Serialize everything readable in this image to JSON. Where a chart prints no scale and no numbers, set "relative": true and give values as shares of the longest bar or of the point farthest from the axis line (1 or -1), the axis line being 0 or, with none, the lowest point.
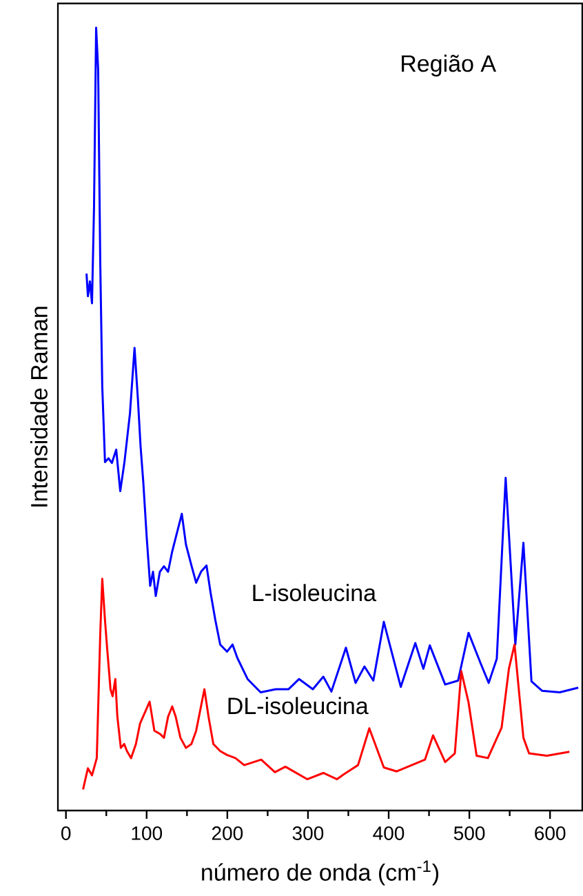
{
  "chart_data": {
    "type": "line",
    "relative": true,
    "xlabel": "número de onda (cm$^{-1}$)",
    "ylabel": "Intensidade Raman",
    "annotations": [
      "Região A"
    ],
    "xlim": [
      -10,
      640
    ],
    "xticks": [
      0,
      100,
      200,
      300,
      400,
      500,
      600
    ],
    "series": [
      {
        "name": "L-isoleucina",
        "color": "#0000ff",
        "x": [
          25.5,
          27.2,
          29.7,
          32.3,
          34.8,
          37.4,
          39.9,
          42.5,
          45.0,
          48.4,
          52.7,
          56.9,
          62.3,
          67.3,
          72.5,
          79.3,
          85.0,
          89.2,
          92.5,
          95.9,
          100.1,
          104.4,
          107.9,
          111.3,
          116.4,
          121.5,
          126.6,
          131.7,
          143.6,
          148.7,
          155.5,
          161.4,
          167.4,
          174.2,
          179.3,
          185.2,
          191.2,
          199.7,
          206.5,
          212.4,
          225.1,
          241.3,
          260,
          276,
          289,
          306,
          319,
          329,
          347,
          359,
          370,
          381,
          394,
          415,
          433,
          443,
          451,
          470,
          486,
          499,
          514,
          524,
          534,
          545,
          557,
          567,
          577,
          590,
          612,
          635
        ],
        "values": [
          0.686,
          0.657,
          0.676,
          0.648,
          0.771,
          1.0,
          0.947,
          0.701,
          0.542,
          0.445,
          0.45,
          0.444,
          0.461,
          0.408,
          0.445,
          0.507,
          0.591,
          0.525,
          0.465,
          0.419,
          0.349,
          0.287,
          0.305,
          0.274,
          0.305,
          0.312,
          0.305,
          0.331,
          0.379,
          0.34,
          0.313,
          0.291,
          0.305,
          0.313,
          0.278,
          0.243,
          0.212,
          0.203,
          0.212,
          0.195,
          0.168,
          0.151,
          0.155,
          0.155,
          0.168,
          0.155,
          0.171,
          0.152,
          0.208,
          0.163,
          0.184,
          0.166,
          0.241,
          0.158,
          0.214,
          0.181,
          0.211,
          0.161,
          0.166,
          0.227,
          0.188,
          0.163,
          0.194,
          0.425,
          0.212,
          0.342,
          0.165,
          0.153,
          0.151,
          0.157
        ]
      },
      {
        "name": "DL-isoleucina",
        "color": "#ff0000",
        "x": [
          21.2,
          27.2,
          32.3,
          38.2,
          42.5,
          45.0,
          48.4,
          51.0,
          55.2,
          57.8,
          61.2,
          63.7,
          68.0,
          72.2,
          75.6,
          80.7,
          86.7,
          91.8,
          103.7,
          109.6,
          116.4,
          121.5,
          126.6,
          131.7,
          136.0,
          141.9,
          148.7,
          155.5,
          161.4,
          171.6,
          176.7,
          182.7,
          191.2,
          199.7,
          210,
          221,
          242,
          259,
          272,
          299,
          319,
          336,
          344,
          362,
          376,
          394,
          410,
          445,
          455,
          470,
          482,
          490,
          499,
          509,
          523,
          540,
          549,
          556,
          567,
          574,
          596,
          624
        ],
        "values": [
          0.027,
          0.054,
          0.045,
          0.067,
          0.225,
          0.296,
          0.243,
          0.208,
          0.155,
          0.146,
          0.168,
          0.12,
          0.08,
          0.085,
          0.076,
          0.067,
          0.085,
          0.111,
          0.139,
          0.102,
          0.098,
          0.093,
          0.12,
          0.133,
          0.12,
          0.093,
          0.08,
          0.085,
          0.102,
          0.155,
          0.12,
          0.085,
          0.076,
          0.071,
          0.067,
          0.058,
          0.065,
          0.049,
          0.056,
          0.04,
          0.048,
          0.04,
          0.046,
          0.058,
          0.105,
          0.055,
          0.05,
          0.065,
          0.096,
          0.062,
          0.073,
          0.178,
          0.138,
          0.07,
          0.067,
          0.106,
          0.181,
          0.212,
          0.093,
          0.073,
          0.07,
          0.075
        ]
      }
    ]
  }
}
